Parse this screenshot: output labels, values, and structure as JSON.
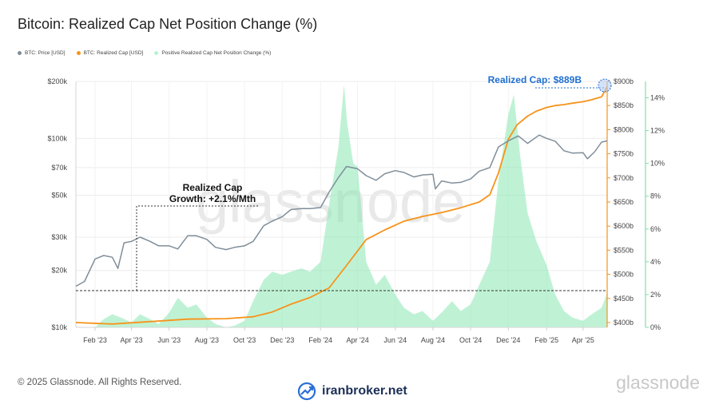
{
  "title": "Bitcoin: Realized Cap Net Position Change (%)",
  "legend": [
    {
      "label": "BTC: Price [USD]",
      "color": "#7f8e9a"
    },
    {
      "label": "BTC: Realized Cap [USD]",
      "color": "#f7931a"
    },
    {
      "label": "Positive Realized Cap Net Position Change (%)",
      "color": "#b9f3d2"
    }
  ],
  "colors": {
    "price": "#7f8e9a",
    "realized_cap": "#f7931a",
    "position_change": "#8be8b3",
    "highlight": "#1f6fd1"
  },
  "footer": {
    "copyright": "© 2025 Glassnode. All Rights Reserved.",
    "logo_text": "glassnode"
  },
  "brand": {
    "text": "iranbroker.net",
    "icon": "chart-arrow-icon"
  },
  "watermark": "glassnode",
  "annotations": {
    "growth_line1": "Realized Cap",
    "growth_line2": "Growth: +2.1%/Mth",
    "cap_label": "Realized Cap: $889B"
  },
  "chart_data": {
    "type": "line",
    "title": "Bitcoin: Realized Cap Net Position Change (%)",
    "x_tick_labels": [
      "Feb '23",
      "Apr '23",
      "Jun '23",
      "Aug '23",
      "Oct '23",
      "Dec '23",
      "Feb '24",
      "Apr '24",
      "Jun '24",
      "Aug '24",
      "Oct '24",
      "Dec '24",
      "Feb '25",
      "Apr '25"
    ],
    "axes": {
      "price_log": {
        "ticks": [
          "$10k",
          "$20k",
          "$30k",
          "$50k",
          "$70k",
          "$100k",
          "$200k"
        ],
        "range": [
          10000,
          200000
        ],
        "scale": "log"
      },
      "realized_cap": {
        "ticks": [
          "$400b",
          "$450b",
          "$500b",
          "$550b",
          "$600b",
          "$650b",
          "$700b",
          "$750b",
          "$800b",
          "$850b",
          "$900b"
        ],
        "range": [
          390,
          900
        ]
      },
      "percent": {
        "ticks": [
          "0%",
          "2%",
          "4%",
          "6%",
          "8%",
          "10%",
          "12%",
          "14%"
        ],
        "range": [
          0,
          15
        ]
      }
    },
    "x_range": [
      "2023-01-01",
      "2025-05-10"
    ],
    "series": [
      {
        "name": "BTC: Price [USD]",
        "axis": "price_log",
        "x": [
          "2023-01-01",
          "2023-01-15",
          "2023-02-01",
          "2023-02-15",
          "2023-03-01",
          "2023-03-10",
          "2023-03-20",
          "2023-04-01",
          "2023-04-15",
          "2023-05-01",
          "2023-05-15",
          "2023-06-01",
          "2023-06-15",
          "2023-07-01",
          "2023-07-15",
          "2023-08-01",
          "2023-08-15",
          "2023-09-01",
          "2023-09-15",
          "2023-10-01",
          "2023-10-15",
          "2023-11-01",
          "2023-11-15",
          "2023-12-01",
          "2023-12-15",
          "2024-01-01",
          "2024-01-15",
          "2024-02-01",
          "2024-02-15",
          "2024-03-01",
          "2024-03-14",
          "2024-04-01",
          "2024-04-15",
          "2024-05-01",
          "2024-05-15",
          "2024-06-01",
          "2024-06-15",
          "2024-07-01",
          "2024-07-15",
          "2024-08-01",
          "2024-08-05",
          "2024-08-15",
          "2024-09-01",
          "2024-09-15",
          "2024-10-01",
          "2024-10-15",
          "2024-11-01",
          "2024-11-15",
          "2024-12-01",
          "2024-12-17",
          "2025-01-01",
          "2025-01-20",
          "2025-02-01",
          "2025-02-15",
          "2025-03-01",
          "2025-03-15",
          "2025-04-01",
          "2025-04-08",
          "2025-04-20",
          "2025-05-01",
          "2025-05-10"
        ],
        "values": [
          16500,
          17500,
          23000,
          24000,
          23500,
          20500,
          28000,
          28500,
          30000,
          28500,
          27000,
          27000,
          26000,
          30500,
          30500,
          29200,
          26500,
          25800,
          26500,
          27000,
          28500,
          34500,
          36500,
          38500,
          42000,
          42500,
          42500,
          43000,
          52000,
          62000,
          71000,
          69000,
          63500,
          60000,
          65000,
          67500,
          66000,
          62500,
          64000,
          64500,
          54000,
          59500,
          58000,
          58500,
          61000,
          67000,
          70000,
          90000,
          97000,
          103000,
          94000,
          104000,
          100000,
          96500,
          86000,
          83500,
          84000,
          78000,
          85000,
          95500,
          97000
        ]
      },
      {
        "name": "BTC: Realized Cap [USD]",
        "axis": "realized_cap",
        "x": [
          "2023-01-01",
          "2023-03-01",
          "2023-05-01",
          "2023-07-01",
          "2023-09-01",
          "2023-10-15",
          "2023-11-15",
          "2023-12-15",
          "2024-01-15",
          "2024-02-15",
          "2024-03-15",
          "2024-04-15",
          "2024-05-15",
          "2024-06-15",
          "2024-07-15",
          "2024-08-15",
          "2024-09-15",
          "2024-10-15",
          "2024-11-01",
          "2024-11-15",
          "2024-12-01",
          "2024-12-15",
          "2025-01-01",
          "2025-01-15",
          "2025-02-01",
          "2025-02-15",
          "2025-03-01",
          "2025-03-15",
          "2025-04-01",
          "2025-04-15",
          "2025-05-01",
          "2025-05-10"
        ],
        "values": [
          400,
          397,
          402,
          407,
          408,
          412,
          422,
          438,
          452,
          472,
          520,
          572,
          592,
          610,
          620,
          628,
          638,
          650,
          665,
          710,
          780,
          810,
          828,
          838,
          846,
          850,
          852,
          855,
          858,
          862,
          868,
          889
        ]
      },
      {
        "name": "Positive Realized Cap Net Position Change (%)",
        "axis": "percent",
        "x": [
          "2023-01-01",
          "2023-02-01",
          "2023-02-15",
          "2023-03-01",
          "2023-03-15",
          "2023-04-01",
          "2023-04-15",
          "2023-05-01",
          "2023-05-15",
          "2023-06-01",
          "2023-06-15",
          "2023-07-01",
          "2023-07-15",
          "2023-08-01",
          "2023-08-15",
          "2023-09-01",
          "2023-09-15",
          "2023-10-01",
          "2023-10-15",
          "2023-11-01",
          "2023-11-15",
          "2023-12-01",
          "2023-12-15",
          "2024-01-01",
          "2024-01-15",
          "2024-02-01",
          "2024-02-15",
          "2024-03-01",
          "2024-03-10",
          "2024-03-15",
          "2024-03-25",
          "2024-04-01",
          "2024-04-15",
          "2024-05-01",
          "2024-05-15",
          "2024-06-01",
          "2024-06-15",
          "2024-07-01",
          "2024-07-15",
          "2024-08-01",
          "2024-08-15",
          "2024-09-01",
          "2024-09-15",
          "2024-10-01",
          "2024-10-15",
          "2024-11-01",
          "2024-11-15",
          "2024-12-01",
          "2024-12-10",
          "2024-12-20",
          "2025-01-01",
          "2025-01-15",
          "2025-02-01",
          "2025-02-15",
          "2025-03-01",
          "2025-03-15",
          "2025-04-01",
          "2025-04-15",
          "2025-05-01",
          "2025-05-10"
        ],
        "values": [
          0,
          0,
          0.5,
          0.8,
          0.6,
          0.3,
          0.8,
          0.5,
          0.2,
          0.9,
          1.8,
          1.2,
          1.4,
          0.6,
          0.2,
          0,
          0.1,
          0.4,
          1.6,
          2.9,
          3.4,
          3.2,
          3.4,
          3.6,
          3.4,
          4.0,
          7.5,
          11.0,
          14.8,
          12.5,
          10.0,
          9.8,
          4.0,
          2.6,
          3.2,
          2.0,
          1.2,
          0.8,
          1.0,
          0.4,
          0.9,
          1.6,
          1.0,
          1.4,
          2.6,
          4.0,
          9.0,
          13.0,
          14.2,
          10.5,
          7.0,
          5.3,
          3.8,
          2.0,
          1.0,
          0.6,
          0.4,
          0.8,
          1.2,
          2.1
        ]
      }
    ],
    "annotations": {
      "growth_label": "Realized Cap Growth: +2.1%/Mth",
      "cap_label": "Realized Cap: $889B"
    },
    "grid": true,
    "legend": "top-left"
  }
}
